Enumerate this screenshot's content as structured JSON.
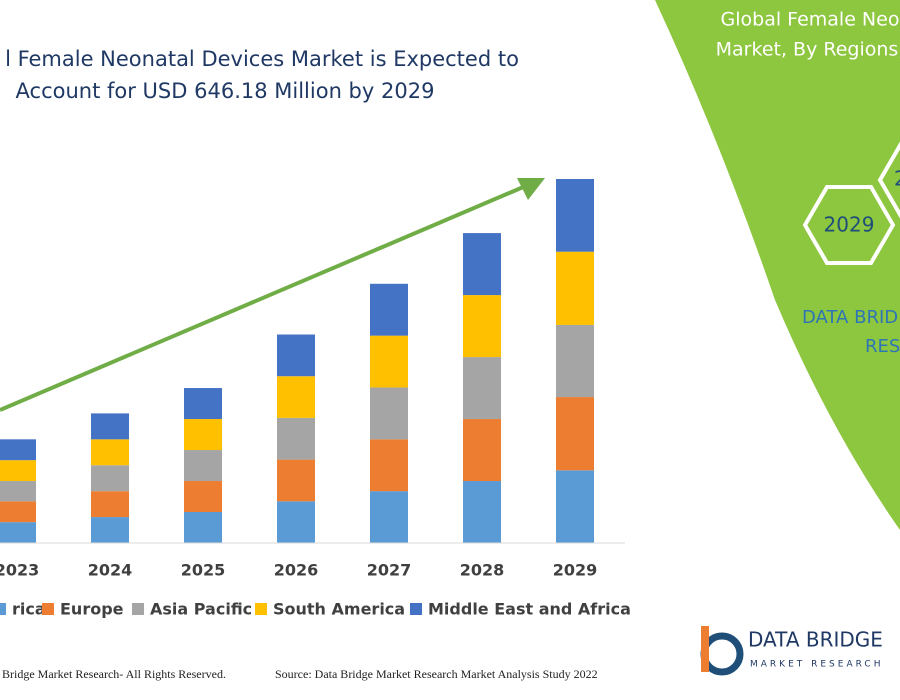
{
  "chart_data": {
    "type": "stacked_bar",
    "title_lines": [
      "l Female Neonatal Devices Market is Expected to",
      "Account for USD 646.18 Million by 2029"
    ],
    "categories": [
      "2023",
      "2024",
      "2025",
      "2026",
      "2027",
      "2028",
      "2029"
    ],
    "series": [
      {
        "name": "rica",
        "color": "#5b9bd5",
        "values": [
          37,
          46,
          55,
          74,
          92,
          110,
          129
        ]
      },
      {
        "name": "Europe",
        "color": "#ed7d31",
        "values": [
          37,
          46,
          55,
          74,
          92,
          110,
          130
        ]
      },
      {
        "name": "Asia Pacific",
        "color": "#a5a5a5",
        "values": [
          36,
          46,
          55,
          74,
          92,
          110,
          128
        ]
      },
      {
        "name": "South America",
        "color": "#ffc000",
        "values": [
          37,
          46,
          55,
          74,
          92,
          110,
          130
        ]
      },
      {
        "name": "Middle East and Africa",
        "color": "#4472c4",
        "values": [
          37,
          46,
          55,
          74,
          92,
          110,
          129
        ]
      }
    ],
    "footer_left": "Bridge Market Research- All Rights Reserved.",
    "footer_right": "Source: Data Bridge Market Research Market Analysis Study 2022"
  },
  "panel": {
    "heading_lines": [
      "Global Female Neo",
      "Market, By Regions,"
    ],
    "hex_year": "2029",
    "hex_partial": "2",
    "brand_lines": [
      "DATA BRID",
      "RES"
    ]
  },
  "logo": {
    "name": "DATA BRIDGE",
    "tagline": "MARKET RESEARCH"
  }
}
